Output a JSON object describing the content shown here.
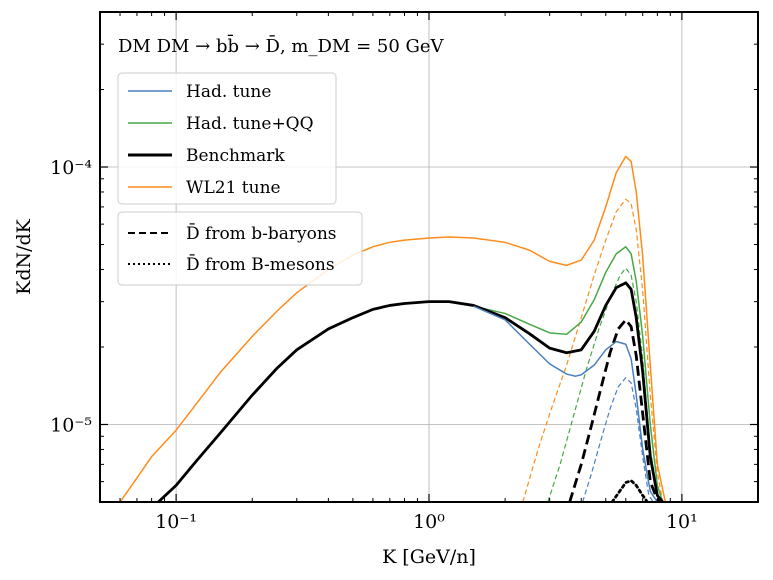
{
  "chart_data": {
    "type": "line",
    "title": "",
    "annotation": "DM DM → bb̄ → D̄, m_DM = 50 GeV",
    "xlabel": "K [GeV/n]",
    "ylabel": "KdN/dK",
    "xscale": "log",
    "yscale": "log",
    "xlim": [
      0.05,
      20
    ],
    "ylim": [
      5e-06,
      0.0004
    ],
    "x_ticks": [
      {
        "value": 0.1,
        "label": "10⁻¹"
      },
      {
        "value": 1,
        "label": "10⁰"
      },
      {
        "value": 10,
        "label": "10¹"
      }
    ],
    "y_ticks": [
      {
        "value": 1e-05,
        "label": "10⁻⁵"
      },
      {
        "value": 0.0001,
        "label": "10⁻⁴"
      }
    ],
    "grid": true,
    "legend_position": "top-left",
    "legend_tunes": [
      {
        "name": "Had. tune",
        "color": "#4a7fbf",
        "style": "solid",
        "width": "thin"
      },
      {
        "name": "Had. tune+QQ",
        "color": "#45a845",
        "style": "solid",
        "width": "thin"
      },
      {
        "name": "Benchmark",
        "color": "#000000",
        "style": "solid",
        "width": "thick"
      },
      {
        "name": "WL21 tune",
        "color": "#ff8c1a",
        "style": "solid",
        "width": "thin"
      }
    ],
    "legend_components": [
      {
        "name": "D̄ from b-baryons",
        "style": "dashed"
      },
      {
        "name": "D̄ from B-mesons",
        "style": "dotted"
      }
    ],
    "series": [
      {
        "name": "WL21 tune",
        "color": "#ff8c1a",
        "style": "solid",
        "width": 1.5,
        "x": [
          0.06,
          0.07,
          0.08,
          0.1,
          0.12,
          0.15,
          0.2,
          0.25,
          0.3,
          0.4,
          0.5,
          0.6,
          0.7,
          0.8,
          1.0,
          1.2,
          1.5,
          2.0,
          2.5,
          3.0,
          3.5,
          4.0,
          4.5,
          5.0,
          5.5,
          6.0,
          6.3,
          6.6,
          7.0,
          7.5,
          8.0,
          8.6
        ],
        "y": [
          5e-06,
          6.2e-06,
          7.5e-06,
          9.5e-06,
          1.2e-05,
          1.6e-05,
          2.2e-05,
          2.75e-05,
          3.25e-05,
          4e-05,
          4.55e-05,
          4.9e-05,
          5.1e-05,
          5.2e-05,
          5.3e-05,
          5.35e-05,
          5.3e-05,
          5.1e-05,
          4.75e-05,
          4.3e-05,
          4.15e-05,
          4.35e-05,
          5.2e-05,
          7e-05,
          9.5e-05,
          0.00011,
          0.000105,
          8e-05,
          4.5e-05,
          1.7e-05,
          7e-06,
          5e-06
        ]
      },
      {
        "name": "WL21 tune (b-baryons)",
        "color": "#ff8c1a",
        "style": "dashed",
        "width": 1.2,
        "x": [
          2.35,
          2.7,
          3.0,
          3.5,
          4.0,
          4.5,
          5.0,
          5.5,
          6.0,
          6.3,
          6.6,
          7.0,
          7.5,
          8.0,
          8.4
        ],
        "y": [
          5e-06,
          8e-06,
          1.1e-05,
          1.7e-05,
          2.6e-05,
          3.8e-05,
          5.2e-05,
          6.7e-05,
          7.5e-05,
          7.2e-05,
          5.7e-05,
          3.3e-05,
          1.3e-05,
          6.5e-06,
          5e-06
        ]
      },
      {
        "name": "Had. tune+QQ",
        "color": "#45a845",
        "style": "solid",
        "width": 1.5,
        "x": [
          1.5,
          2.0,
          2.5,
          3.0,
          3.5,
          4.0,
          4.5,
          5.0,
          5.5,
          6.0,
          6.3,
          6.6,
          7.0,
          7.5,
          8.0,
          8.4
        ],
        "y": [
          2.88e-05,
          2.7e-05,
          2.45e-05,
          2.27e-05,
          2.24e-05,
          2.5e-05,
          3.05e-05,
          3.9e-05,
          4.6e-05,
          4.9e-05,
          4.6e-05,
          3.6e-05,
          2.2e-05,
          1e-05,
          5.8e-06,
          5e-06
        ]
      },
      {
        "name": "Had. tune+QQ (b-baryons)",
        "color": "#45a845",
        "style": "dashed",
        "width": 1.2,
        "x": [
          2.95,
          3.3,
          3.7,
          4.2,
          4.7,
          5.2,
          5.7,
          6.0,
          6.3,
          6.6,
          7.0,
          7.5,
          8.0,
          8.3
        ],
        "y": [
          5e-06,
          7e-06,
          1.05e-05,
          1.65e-05,
          2.35e-05,
          3.1e-05,
          3.8e-05,
          4.05e-05,
          3.8e-05,
          3e-05,
          1.8e-05,
          8e-06,
          5.4e-06,
          5e-06
        ]
      },
      {
        "name": "Benchmark",
        "color": "#000000",
        "style": "solid",
        "width": 2.8,
        "x": [
          0.085,
          0.1,
          0.12,
          0.15,
          0.2,
          0.25,
          0.3,
          0.4,
          0.5,
          0.6,
          0.7,
          0.8,
          1.0,
          1.2,
          1.5,
          2.0,
          2.5,
          3.0,
          3.5,
          4.0,
          4.5,
          5.0,
          5.5,
          6.0,
          6.3,
          6.6,
          7.0,
          7.5,
          8.0,
          8.4
        ],
        "y": [
          5e-06,
          5.8e-06,
          7.2e-06,
          9.3e-06,
          1.3e-05,
          1.65e-05,
          1.95e-05,
          2.35e-05,
          2.6e-05,
          2.8e-05,
          2.9e-05,
          2.95e-05,
          3e-05,
          3e-05,
          2.9e-05,
          2.6e-05,
          2.25e-05,
          1.98e-05,
          1.9e-05,
          1.95e-05,
          2.3e-05,
          2.9e-05,
          3.4e-05,
          3.55e-05,
          3.35e-05,
          2.6e-05,
          1.6e-05,
          7.5e-06,
          5.3e-06,
          5e-06
        ]
      },
      {
        "name": "Benchmark (b-baryons)",
        "color": "#000000",
        "style": "dashed",
        "width": 2.8,
        "x": [
          3.6,
          4.0,
          4.4,
          4.8,
          5.2,
          5.6,
          6.0,
          6.3,
          6.6,
          7.0,
          7.5,
          8.0,
          8.3
        ],
        "y": [
          5e-06,
          7e-06,
          1e-05,
          1.4e-05,
          1.9e-05,
          2.35e-05,
          2.55e-05,
          2.4e-05,
          1.85e-05,
          1.1e-05,
          6e-06,
          5.1e-06,
          5e-06
        ]
      },
      {
        "name": "Had. tune",
        "color": "#4a7fbf",
        "style": "solid",
        "width": 1.5,
        "x": [
          1.5,
          2.0,
          2.5,
          3.0,
          3.5,
          3.8,
          4.0,
          4.5,
          5.0,
          5.5,
          6.0,
          6.3,
          6.6,
          7.0,
          7.5,
          8.0
        ],
        "y": [
          2.88e-05,
          2.55e-05,
          2.05e-05,
          1.72e-05,
          1.57e-05,
          1.54e-05,
          1.56e-05,
          1.7e-05,
          1.95e-05,
          2.1e-05,
          2.05e-05,
          1.8e-05,
          1.3e-05,
          8e-06,
          5.5e-06,
          5e-06
        ]
      },
      {
        "name": "Had. tune (b-baryons)",
        "color": "#4a7fbf",
        "style": "dashed",
        "width": 1.2,
        "x": [
          4.05,
          4.4,
          4.8,
          5.2,
          5.6,
          6.0,
          6.3,
          6.6,
          7.0,
          7.4,
          7.7
        ],
        "y": [
          5e-06,
          6.5e-06,
          8.8e-06,
          1.15e-05,
          1.4e-05,
          1.52e-05,
          1.45e-05,
          1.15e-05,
          7.5e-06,
          5.3e-06,
          5e-06
        ]
      },
      {
        "name": "Benchmark (B-mesons)",
        "color": "#000000",
        "style": "dotted",
        "width": 2.8,
        "x": [
          5.3,
          5.6,
          6.0,
          6.3,
          6.6,
          7.0,
          7.3
        ],
        "y": [
          5e-06,
          5.4e-06,
          5.95e-06,
          6.05e-06,
          5.8e-06,
          5.3e-06,
          5e-06
        ]
      }
    ]
  }
}
